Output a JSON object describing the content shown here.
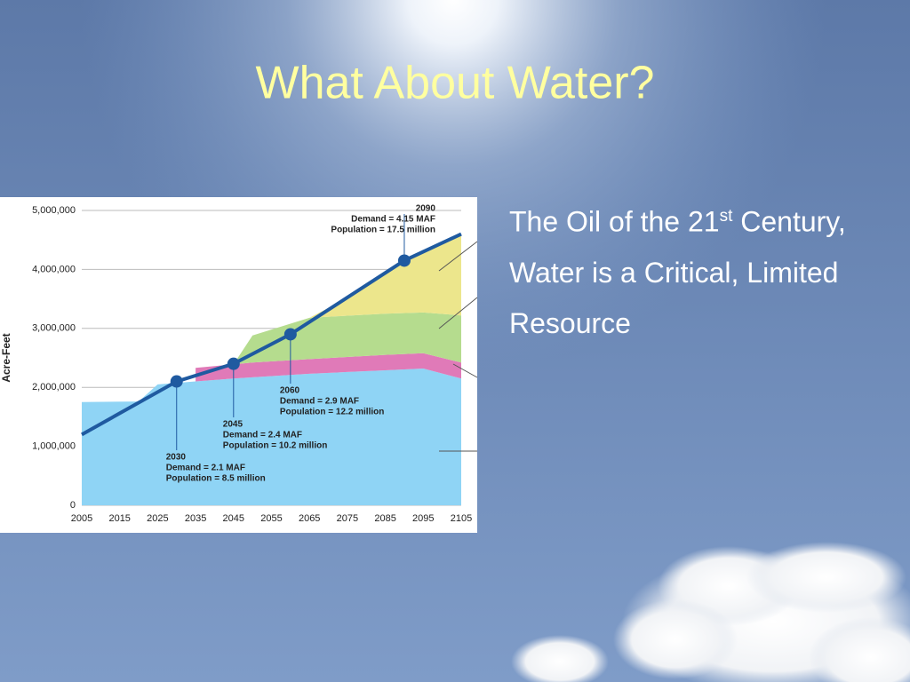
{
  "slide": {
    "title": "What About Water?",
    "bullet": {
      "text": "The Oil of the 21",
      "superscript": "st",
      "rest": "Century, Water is a Critical, Limited Resource"
    }
  },
  "chart_data": {
    "type": "stacked-area",
    "y_label": "Acre-Feet",
    "x": [
      2005,
      2020,
      2025,
      2035,
      2045,
      2050,
      2065,
      2075,
      2085,
      2095,
      2105
    ],
    "series": [
      {
        "color": "#8fd4f5",
        "values": [
          1750000,
          1760000,
          2050000,
          2100000,
          2150000,
          2170000,
          2230000,
          2260000,
          2290000,
          2320000,
          2150000
        ]
      },
      {
        "color": "#e07ab8",
        "values": [
          null,
          null,
          null,
          230000,
          240000,
          250000,
          250000,
          255000,
          260000,
          260000,
          270000
        ]
      },
      {
        "color": "#b5dc8e",
        "values": [
          null,
          null,
          null,
          null,
          0,
          460000,
          700000,
          700000,
          700000,
          690000,
          800000
        ]
      },
      {
        "color": "#ece68c",
        "values": [
          null,
          null,
          null,
          null,
          null,
          null,
          0,
          300000,
          690000,
          1030000,
          1380000
        ]
      }
    ],
    "demand": {
      "color": "#1f5aa0",
      "x": [
        2005,
        2030,
        2045,
        2060,
        2090,
        2105
      ],
      "values": [
        1200000,
        2100000,
        2400000,
        2900000,
        4150000,
        4600000
      ]
    },
    "annotations": [
      {
        "x": 2030,
        "demand": "Demand = 2.1 MAF",
        "population": "Population = 8.5 million"
      },
      {
        "x": 2045,
        "demand": "Demand = 2.4 MAF",
        "population": "Population = 10.2 million"
      },
      {
        "x": 2060,
        "demand": "Demand = 2.9 MAF",
        "population": "Population = 12.2 million"
      },
      {
        "x": 2090,
        "demand": "Demand = 4.15 MAF",
        "population": "Population = 17.5 million"
      }
    ],
    "xlim": [
      2005,
      2105
    ],
    "xticks": [
      2005,
      2015,
      2025,
      2035,
      2045,
      2055,
      2065,
      2075,
      2085,
      2095,
      2105
    ],
    "ylim": [
      0,
      5000000
    ],
    "yticks": [
      0,
      {
        "value": 1000000,
        "label": "1,000,000"
      },
      {
        "value": 2000000,
        "label": "2,000,000"
      },
      {
        "value": 3000000,
        "label": "3,000,000"
      },
      {
        "value": 4000000,
        "label": "4,000,000"
      },
      {
        "value": 5000000,
        "label": "5,000,000"
      }
    ],
    "grid": true
  }
}
